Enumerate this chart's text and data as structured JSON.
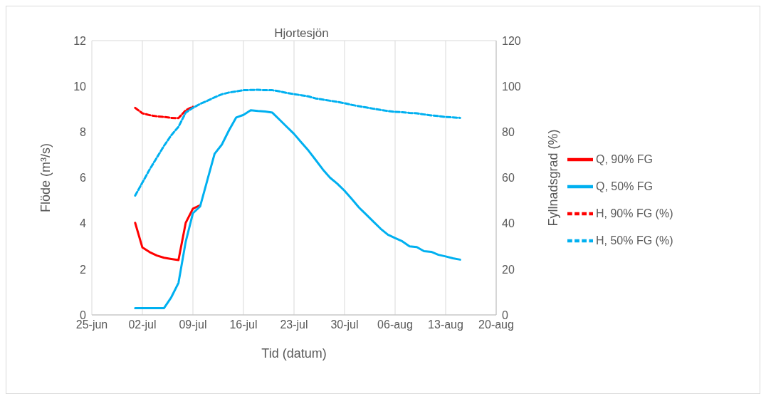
{
  "chart_data": {
    "type": "line",
    "title": "Hjortesjön",
    "xlabel": "Tid (datum)",
    "ylabel": "Flöde (m³/s)",
    "y2label": "Fyllnadsgrad (%)",
    "x": [
      "--07-01",
      "--07-02",
      "--07-03",
      "--07-04",
      "--07-05",
      "--07-06",
      "--07-07",
      "--07-08",
      "--07-09",
      "--07-10",
      "--07-11",
      "--07-12",
      "--07-13",
      "--07-14",
      "--07-15",
      "--07-16",
      "--07-17",
      "--07-18",
      "--07-19",
      "--07-20",
      "--07-21",
      "--07-22",
      "--07-23",
      "--07-24",
      "--07-25",
      "--07-26",
      "--07-27",
      "--07-28",
      "--07-29",
      "--07-30",
      "--07-31",
      "--08-01",
      "--08-02",
      "--08-03",
      "--08-04",
      "--08-05",
      "--08-06",
      "--08-07",
      "--08-08",
      "--08-09",
      "--08-10",
      "--08-11",
      "--08-12",
      "--08-13",
      "--08-14",
      "--08-15"
    ],
    "series": [
      {
        "name": "Q, 90% FG",
        "color": "#ff0000",
        "line_style": "solid",
        "values": [
          4.03,
          2.95,
          2.75,
          2.6,
          2.5,
          2.45,
          2.4,
          4.03,
          4.65,
          4.8,
          null,
          null,
          null,
          null,
          null,
          null,
          null,
          null,
          null,
          null,
          null,
          null,
          null,
          null,
          null,
          null,
          null,
          null,
          null,
          null,
          null,
          null,
          null,
          null,
          null,
          null,
          null,
          null,
          null,
          null,
          null,
          null,
          null,
          null,
          null,
          null
        ]
      },
      {
        "name": "Q, 50% FG",
        "color": "#00b0f0",
        "line_style": "solid",
        "values": [
          0.3,
          0.3,
          0.3,
          0.3,
          0.3,
          0.77,
          1.4,
          3.2,
          4.45,
          4.75,
          5.9,
          7.05,
          7.45,
          8.08,
          8.64,
          8.75,
          8.95,
          8.92,
          8.9,
          8.85,
          8.54,
          8.23,
          7.92,
          7.55,
          7.19,
          6.78,
          6.36,
          6.0,
          5.74,
          5.43,
          5.07,
          4.7,
          4.39,
          4.08,
          3.77,
          3.51,
          3.36,
          3.22,
          3.0,
          2.97,
          2.79,
          2.76,
          2.63,
          2.56,
          2.48,
          2.42
        ]
      },
      {
        "name": "H, 90% FG (%)",
        "color": "#ff0000",
        "line_style": "dashed",
        "axis": "y2",
        "values": [
          90.6,
          88.2,
          87.4,
          86.9,
          86.6,
          86.2,
          86.1,
          89.5,
          91.1,
          null,
          null,
          null,
          null,
          null,
          null,
          null,
          null,
          null,
          null,
          null,
          null,
          null,
          null,
          null,
          null,
          null,
          null,
          null,
          null,
          null,
          null,
          null,
          null,
          null,
          null,
          null,
          null,
          null,
          null,
          null,
          null,
          null,
          null,
          null,
          null,
          null
        ]
      },
      {
        "name": "H, 50% FG (%)",
        "color": "#00b0f0",
        "line_style": "dashed",
        "axis": "y2",
        "values": [
          52.2,
          57.9,
          63.6,
          68.8,
          74.0,
          78.6,
          82.3,
          88.5,
          90.6,
          92.3,
          93.7,
          95.2,
          96.5,
          97.3,
          97.8,
          98.3,
          98.4,
          98.5,
          98.3,
          98.3,
          97.8,
          97.1,
          96.6,
          96.1,
          95.6,
          94.7,
          94.2,
          93.7,
          93.2,
          92.6,
          91.9,
          91.3,
          90.8,
          90.2,
          89.7,
          89.2,
          88.8,
          88.7,
          88.4,
          88.2,
          87.7,
          87.3,
          87.0,
          86.6,
          86.4,
          86.2
        ]
      }
    ],
    "xlim": [
      "--06-25",
      "--08-20"
    ],
    "xticks": [
      {
        "value": "--06-25",
        "label": "25-jun"
      },
      {
        "value": "--07-02",
        "label": "02-jul"
      },
      {
        "value": "--07-09",
        "label": "09-jul"
      },
      {
        "value": "--07-16",
        "label": "16-jul"
      },
      {
        "value": "--07-23",
        "label": "23-jul"
      },
      {
        "value": "--07-30",
        "label": "30-jul"
      },
      {
        "value": "--08-06",
        "label": "06-aug"
      },
      {
        "value": "--08-13",
        "label": "13-aug"
      },
      {
        "value": "--08-20",
        "label": "20-aug"
      }
    ],
    "ylim": [
      0,
      12
    ],
    "yticks": [
      0,
      2,
      4,
      6,
      8,
      10,
      12
    ],
    "y2lim": [
      0,
      120
    ],
    "y2ticks": [
      0,
      20,
      40,
      60,
      80,
      100,
      120
    ],
    "grid": true,
    "legend": "right"
  }
}
